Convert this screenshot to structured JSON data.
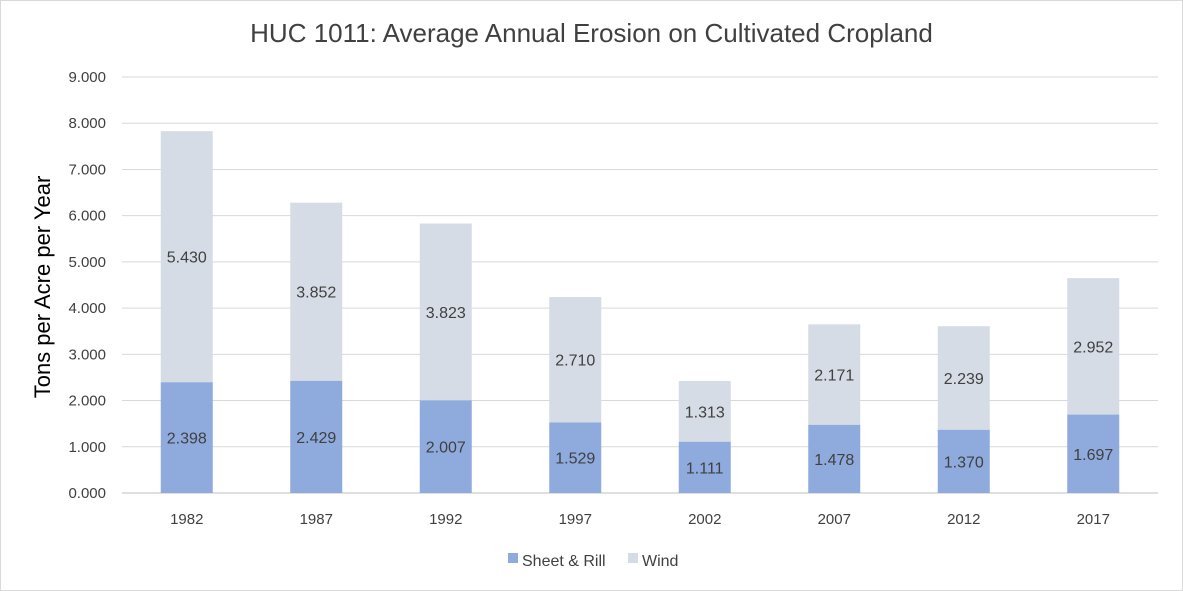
{
  "chart_data": {
    "type": "bar",
    "stacked": true,
    "title": "HUC 1011: Average Annual Erosion on Cultivated Cropland",
    "xlabel": "",
    "ylabel": "Tons per Acre per Year",
    "ylim": [
      0,
      9
    ],
    "yticks": [
      "0.000",
      "1.000",
      "2.000",
      "3.000",
      "4.000",
      "5.000",
      "6.000",
      "7.000",
      "8.000",
      "9.000"
    ],
    "grid": true,
    "legend_position": "bottom",
    "categories": [
      "1982",
      "1987",
      "1992",
      "1997",
      "2002",
      "2007",
      "2012",
      "2017"
    ],
    "series": [
      {
        "name": "Sheet & Rill",
        "color": "#8faadc",
        "values": [
          2.398,
          2.429,
          2.007,
          1.529,
          1.111,
          1.478,
          1.37,
          1.697
        ],
        "labels": [
          "2.398",
          "2.429",
          "2.007",
          "1.529",
          "1.111",
          "1.478",
          "1.370",
          "1.697"
        ]
      },
      {
        "name": "Wind",
        "color": "#d6dce5",
        "values": [
          5.43,
          3.852,
          3.823,
          2.71,
          1.313,
          2.171,
          2.239,
          2.952
        ],
        "labels": [
          "5.430",
          "3.852",
          "3.823",
          "2.710",
          "1.313",
          "2.171",
          "2.239",
          "2.952"
        ]
      }
    ]
  }
}
